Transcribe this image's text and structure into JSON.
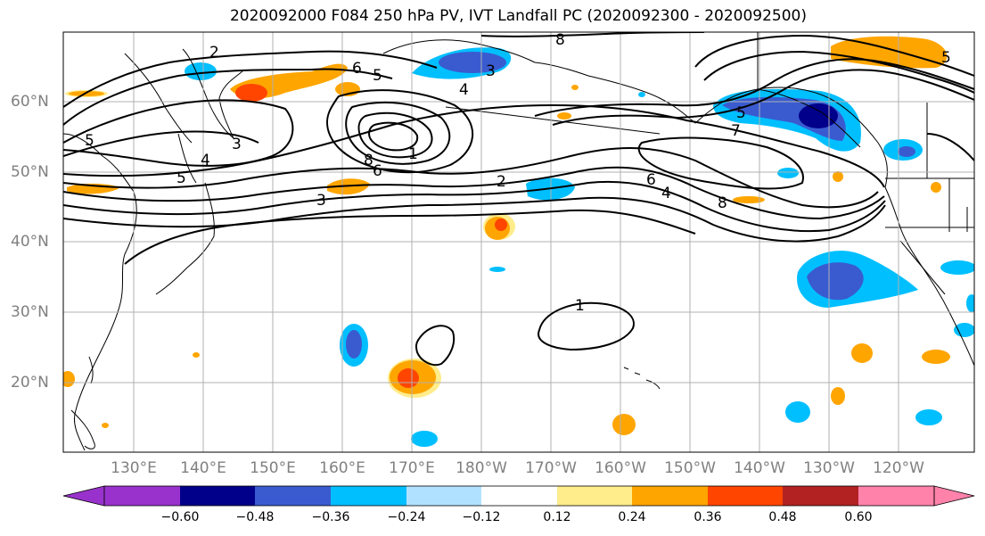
{
  "title": "2020092000 F084 250 hPa PV, IVT Landfall PC (2020092300 - 2020092500)",
  "lat_labels": [
    "60°N",
    "50°N",
    "40°N",
    "30°N",
    "20°N"
  ],
  "lon_labels": [
    "130°E",
    "140°E",
    "150°E",
    "160°E",
    "170°E",
    "180°W",
    "170°W",
    "160°W",
    "150°W",
    "140°W",
    "130°W",
    "120°W"
  ],
  "map_extent": {
    "lon_min": 120,
    "lon_max": 251,
    "lat_min": 10,
    "lat_max": 70
  },
  "colorbar": {
    "ticks": [
      "−0.60",
      "−0.48",
      "−0.36",
      "−0.24",
      "−0.12",
      "0.12",
      "0.24",
      "0.36",
      "0.48",
      "0.60"
    ],
    "colors": [
      "#9932cc",
      "#00008b",
      "#3a5bd0",
      "#00bfff",
      "#b0e2ff",
      "#ffffff",
      "#ffec8b",
      "#ffa500",
      "#ff4500",
      "#b22222",
      "#ff82ab"
    ]
  },
  "contour_labels": [
    "1",
    "2",
    "3",
    "4",
    "5",
    "6",
    "7",
    "8"
  ]
}
